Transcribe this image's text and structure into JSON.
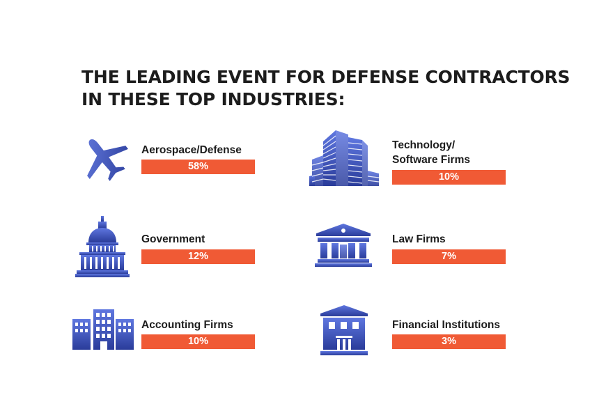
{
  "heading": {
    "line1": "THE LEADING EVENT FOR DEFENSE CONTRACTORS",
    "line2": "IN THESE TOP INDUSTRIES:"
  },
  "colors": {
    "accent": "#f05a35",
    "icon_dark": "#2c3f9e",
    "icon_light": "#6b82e6",
    "text": "#1c1c1c"
  },
  "industries": [
    {
      "label": "Aerospace/Defense",
      "percent": "58%",
      "icon": "airplane-icon"
    },
    {
      "label": "Technology/",
      "label2": "Software Firms",
      "percent": "10%",
      "icon": "skyscrapers-icon"
    },
    {
      "label": "Government",
      "percent": "12%",
      "icon": "capitol-icon"
    },
    {
      "label": "Law Firms",
      "percent": "7%",
      "icon": "courthouse-icon"
    },
    {
      "label": "Accounting Firms",
      "percent": "10%",
      "icon": "office-buildings-icon"
    },
    {
      "label": "Financial Institutions",
      "percent": "3%",
      "icon": "bank-icon"
    }
  ]
}
